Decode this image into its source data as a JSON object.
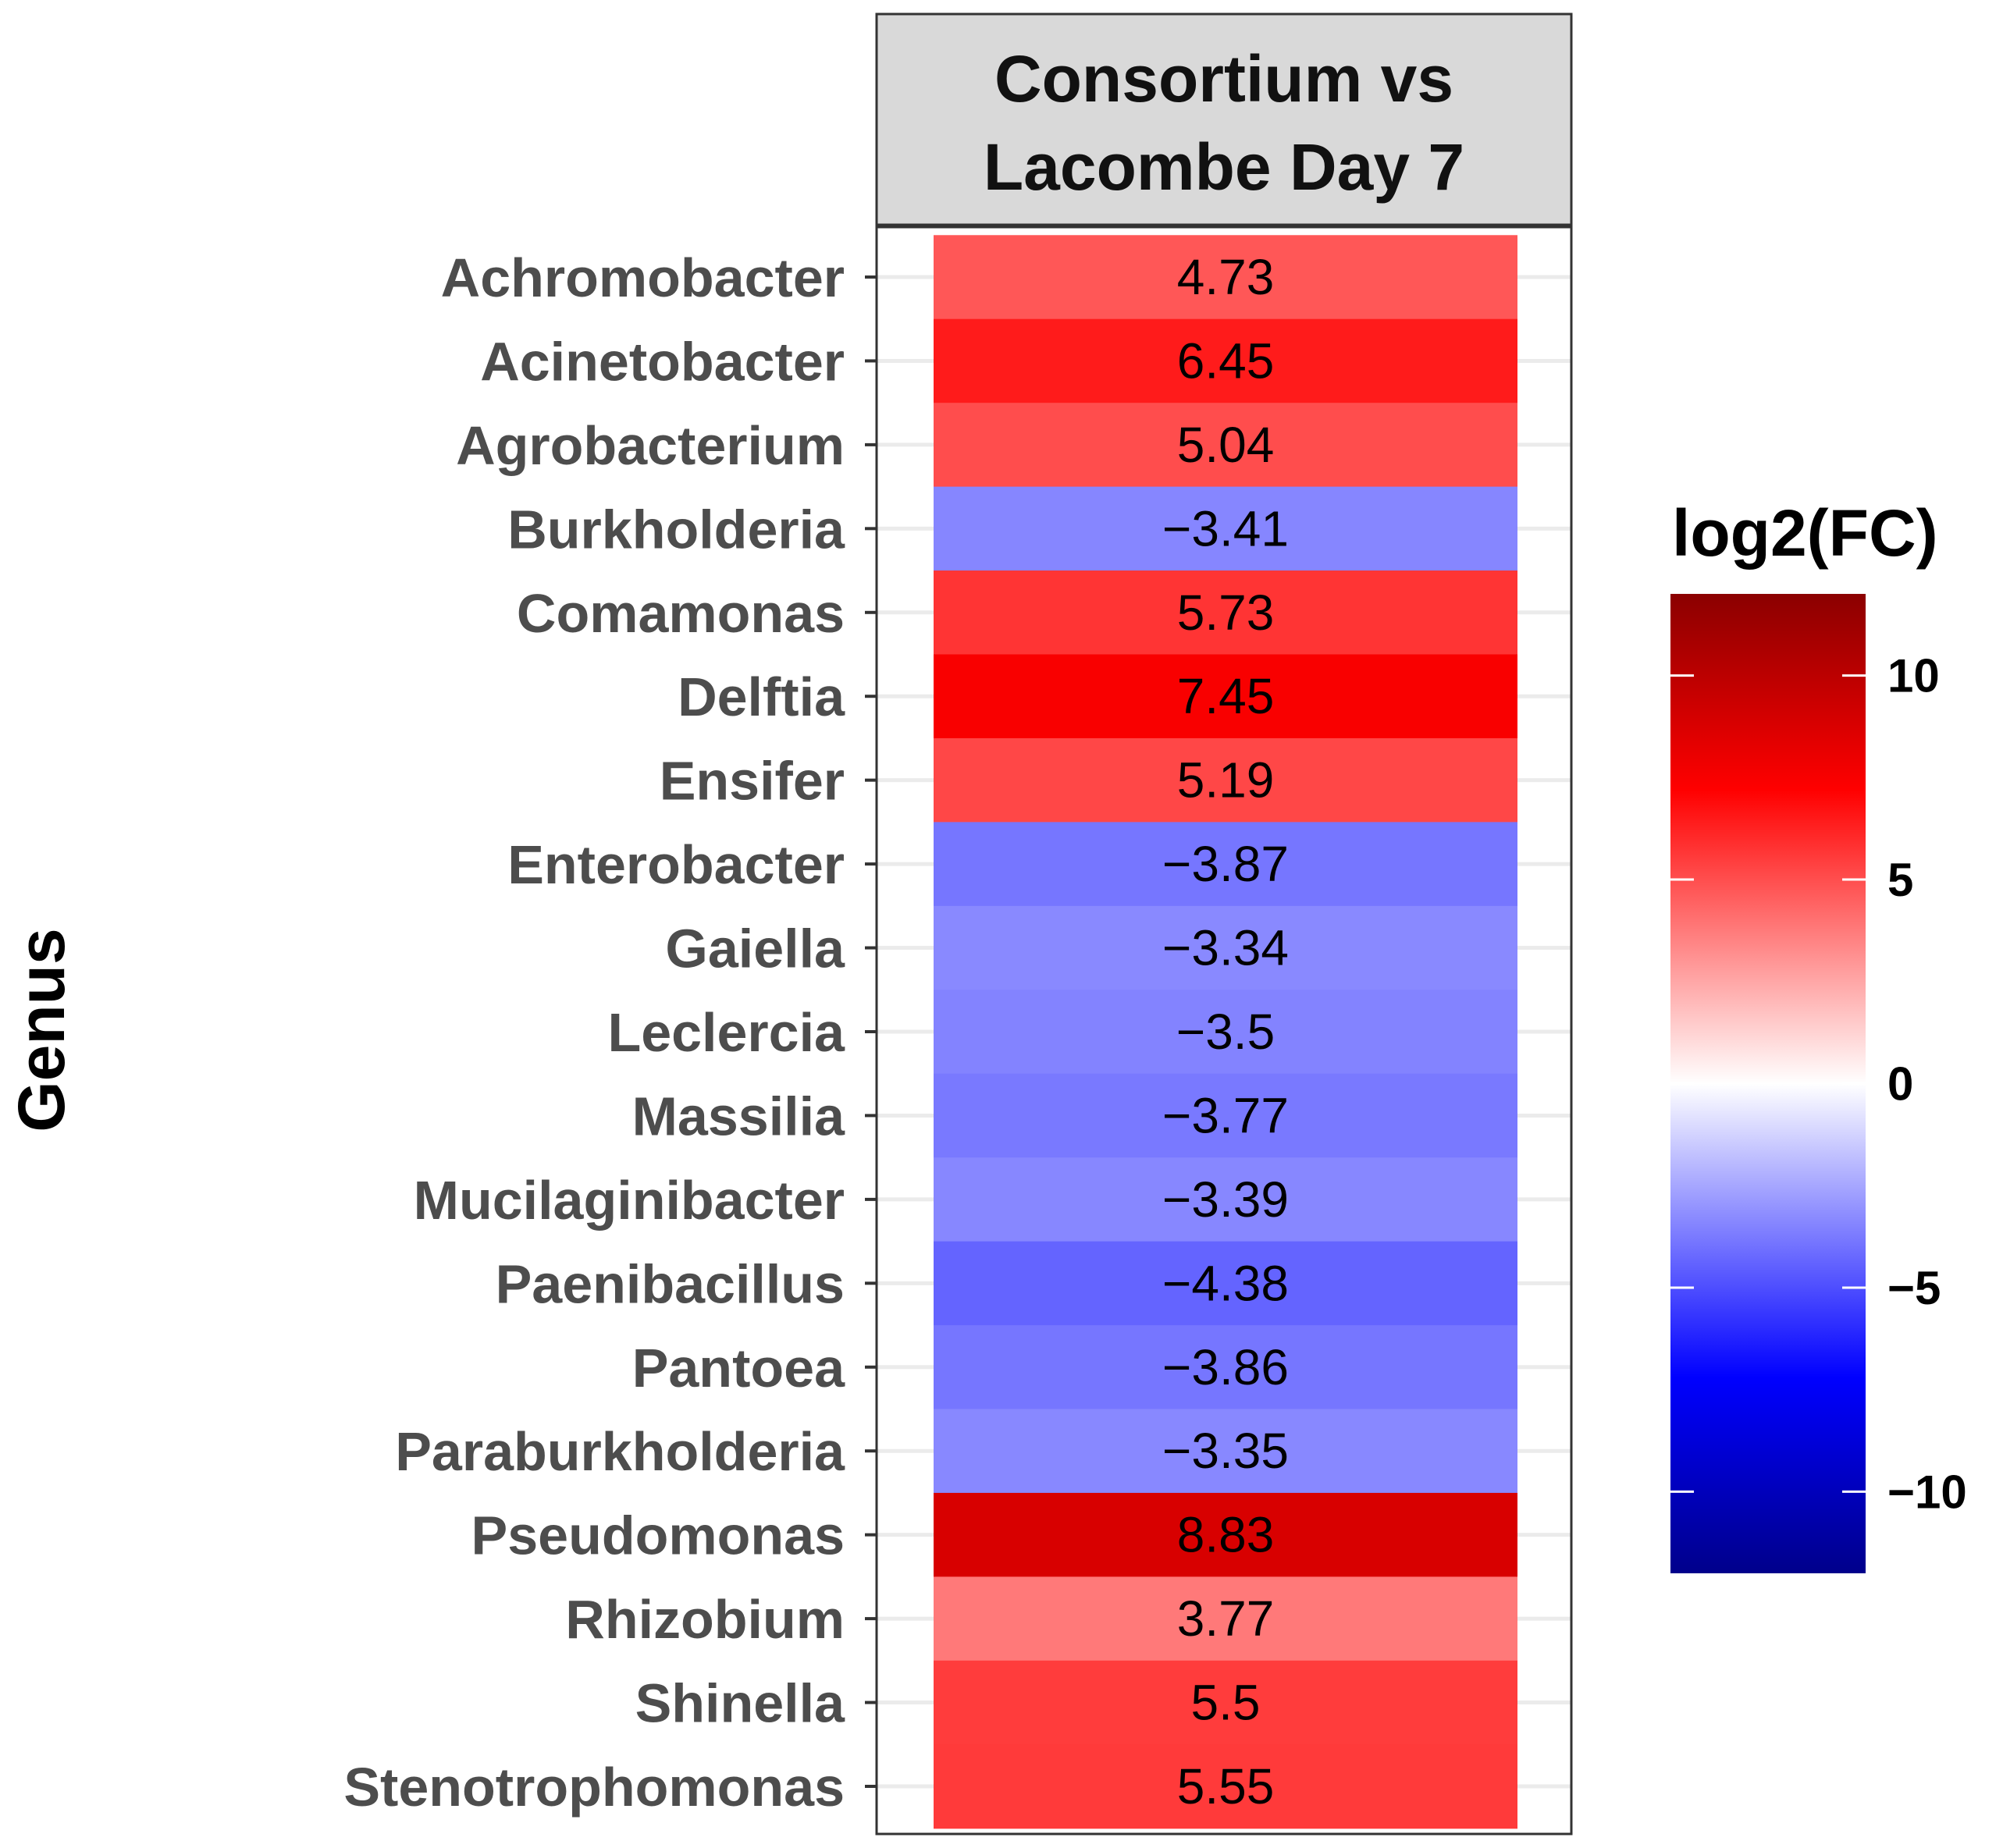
{
  "chart_data": {
    "type": "heatmap",
    "facet_title": [
      "Consortium vs",
      "Lacombe Day 7"
    ],
    "ylabel": "Genus",
    "xlabel": "",
    "categories": [
      "Achromobacter",
      "Acinetobacter",
      "Agrobacterium",
      "Burkholderia",
      "Comamonas",
      "Delftia",
      "Ensifer",
      "Enterobacter",
      "Gaiella",
      "Leclercia",
      "Massilia",
      "Mucilaginibacter",
      "Paenibacillus",
      "Pantoea",
      "Paraburkholderia",
      "Pseudomonas",
      "Rhizobium",
      "Shinella",
      "Stenotrophomonas"
    ],
    "values": [
      4.73,
      6.45,
      5.04,
      -3.41,
      5.73,
      7.45,
      5.19,
      -3.87,
      -3.34,
      -3.5,
      -3.77,
      -3.39,
      -4.38,
      -3.86,
      -3.35,
      8.83,
      3.77,
      5.5,
      5.55
    ],
    "value_labels": [
      "4.73",
      "6.45",
      "5.04",
      "−3.41",
      "5.73",
      "7.45",
      "5.19",
      "−3.87",
      "−3.34",
      "−3.5",
      "−3.77",
      "−3.39",
      "−4.38",
      "−3.86",
      "−3.35",
      "8.83",
      "3.77",
      "5.5",
      "5.55"
    ],
    "legend": {
      "title": "log2(FC)",
      "range": [
        -12,
        12
      ],
      "ticks": [
        10,
        5,
        0,
        -5,
        -10
      ],
      "tick_labels": [
        "10",
        "5",
        "0",
        "−5",
        "−10"
      ],
      "placement": "right",
      "colors": {
        "low": "#00008b",
        "mid_low": "#0000ff",
        "mid": "#ffffff",
        "mid_high": "#ff0000",
        "high": "#8b0000"
      }
    }
  }
}
